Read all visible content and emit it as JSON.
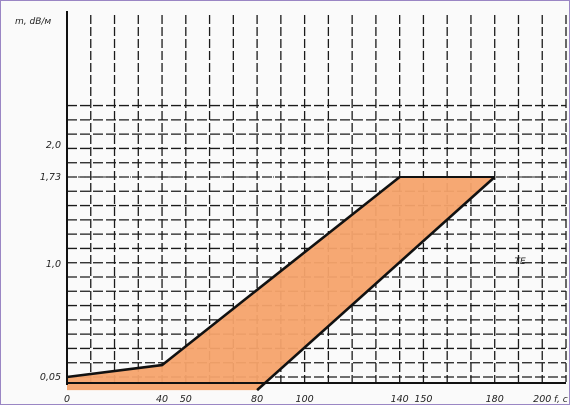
{
  "chart_data": {
    "type": "area",
    "xlabel": "f, с",
    "ylabel": "m, dB/м",
    "x_ticks": [
      "0",
      "40",
      "50",
      "80",
      "100",
      "140",
      "150",
      "180",
      "200"
    ],
    "y_ticks": [
      "0,05",
      "1,0",
      "1,73",
      "2,0"
    ],
    "xlim": [
      0,
      210
    ],
    "ylim": [
      0,
      2.4
    ],
    "grid": true,
    "threshold": {
      "y": 1.73,
      "style": "dash-dot"
    },
    "series": [
      {
        "name": "upper",
        "x": [
          0,
          40,
          140
        ],
        "y": [
          0.05,
          0.15,
          1.73
        ]
      },
      {
        "name": "lower",
        "x": [
          80,
          180
        ],
        "y": [
          0,
          1.73
        ]
      }
    ],
    "shaded_region": {
      "x": [
        0,
        40,
        140,
        180,
        80,
        0
      ],
      "y": [
        0.05,
        0.15,
        1.73,
        1.73,
        0,
        0
      ]
    },
    "annotation": {
      "text": "TΕ",
      "x": 190,
      "y": 0.9
    },
    "fill_color": "#f5a36b",
    "line_color": "#111111",
    "grid_color": "#1a1a1a"
  }
}
